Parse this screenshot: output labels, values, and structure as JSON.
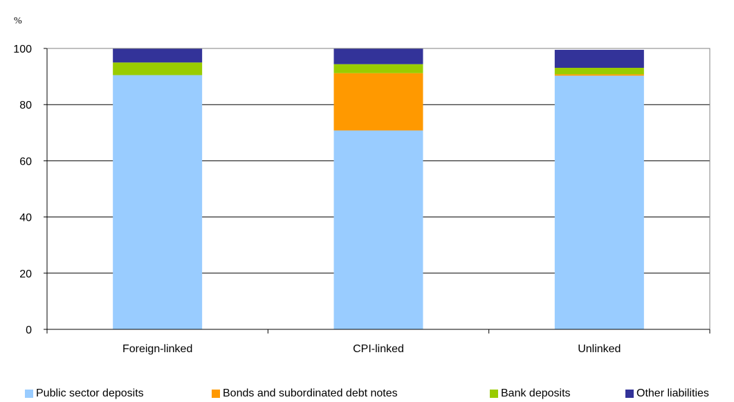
{
  "chart_data": {
    "type": "bar",
    "stacked": true,
    "unit_label": "%",
    "ylim": [
      0,
      100
    ],
    "yticks": [
      0,
      20,
      40,
      60,
      80,
      100
    ],
    "grid": true,
    "legend_position": "bottom",
    "categories": [
      "Foreign-linked",
      "CPI-linked",
      "Unlinked"
    ],
    "series": [
      {
        "name": "Public sector deposits",
        "color": "#99ccff",
        "values": [
          90.5,
          70.8,
          90.3
        ]
      },
      {
        "name": "Bonds and subordinated debt notes",
        "color": "#ff9900",
        "values": [
          0,
          20.4,
          0.5
        ]
      },
      {
        "name": "Bank deposits",
        "color": "#99cc00",
        "values": [
          4.5,
          3.2,
          2.3
        ]
      },
      {
        "name": "Other liabilities",
        "color": "#333399",
        "values": [
          5.0,
          5.6,
          6.4
        ]
      }
    ]
  }
}
